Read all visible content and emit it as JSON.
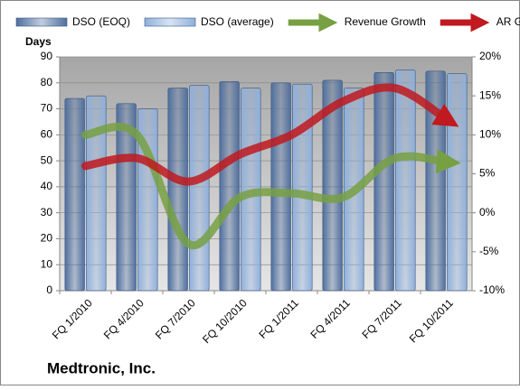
{
  "chart_data": {
    "type": "bar",
    "title": "Medtronic, Inc.",
    "y_label": "Days",
    "categories": [
      "FQ 1/2010",
      "FQ 4/2010",
      "FQ 7/2010",
      "FQ 10/2010",
      "FQ 1/2011",
      "FQ 4/2011",
      "FQ 7/2011",
      "FQ 10/2011"
    ],
    "series": [
      {
        "name": "DSO (EOQ)",
        "color": "#4f6f9f",
        "values": [
          74,
          72,
          78,
          80.5,
          80,
          81,
          84,
          84.5
        ]
      },
      {
        "name": "DSO (average)",
        "color": "#8fb0dc",
        "values": [
          75,
          70,
          79,
          78,
          79.5,
          78,
          85,
          83.5
        ]
      },
      {
        "name": "Revenue Growth",
        "color": "#77a043",
        "axis": "y2",
        "values": [
          10,
          10,
          -4,
          2,
          2.5,
          2,
          7,
          6.5
        ]
      },
      {
        "name": "AR Growth",
        "color": "#c0191f",
        "axis": "y2",
        "values": [
          6,
          7,
          4,
          7.5,
          10,
          14.3,
          16,
          12
        ]
      }
    ],
    "ylim": [
      0,
      90
    ],
    "yticks": [
      0,
      10,
      20,
      30,
      40,
      50,
      60,
      70,
      80,
      90
    ],
    "y2lim": [
      -10,
      20
    ],
    "y2ticks": [
      {
        "value": -10,
        "label": "-10%"
      },
      {
        "value": -5,
        "label": "-5%"
      },
      {
        "value": 0,
        "label": "0%"
      },
      {
        "value": 5,
        "label": "5%"
      },
      {
        "value": 10,
        "label": "10%"
      },
      {
        "value": 15,
        "label": "15%"
      },
      {
        "value": 20,
        "label": "20%"
      }
    ],
    "grid": true
  }
}
